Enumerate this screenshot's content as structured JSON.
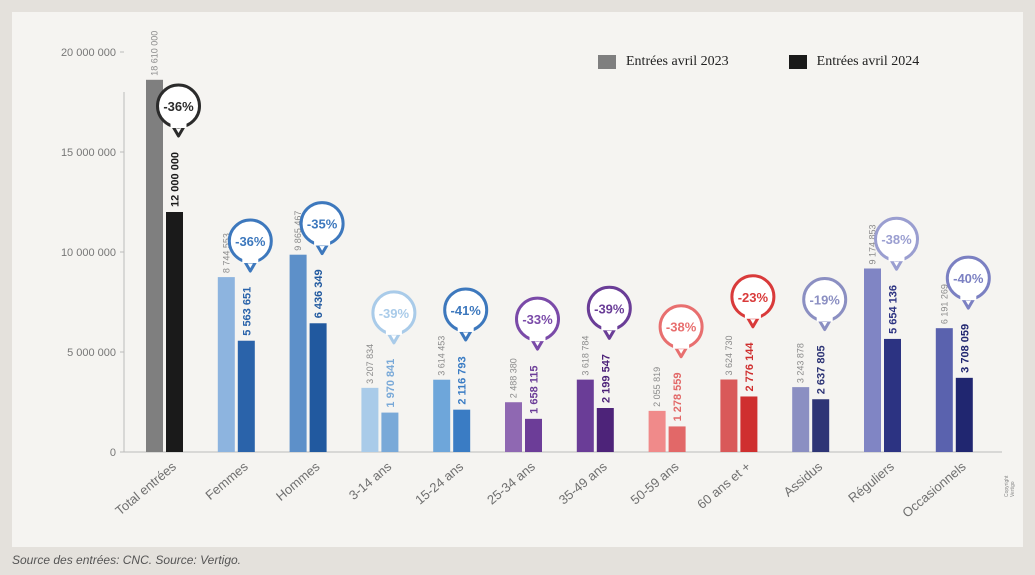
{
  "legend": {
    "items": [
      {
        "label": "Entrées avril 2023",
        "color": "#7f7f7f"
      },
      {
        "label": "Entrées avril 2024",
        "color": "#1a1a1a"
      }
    ]
  },
  "source": "Source des entrées: CNC. Source: Vertigo.",
  "copyright": "Copyright Vertigo",
  "chart_data": {
    "type": "bar",
    "categories": [
      "Total entrées",
      "Femmes",
      "Hommes",
      "3-14 ans",
      "15-24 ans",
      "25-34 ans",
      "35-49 ans",
      "50-59 ans",
      "60 ans et +",
      "Assidus",
      "Réguliers",
      "Occasionnels"
    ],
    "series": [
      {
        "name": "Entrées avril 2023",
        "values": [
          18610000,
          8744553,
          9865467,
          3207834,
          3614453,
          2488380,
          3618784,
          2055819,
          3624730,
          3243878,
          9174853,
          6191269
        ]
      },
      {
        "name": "Entrées avril 2024",
        "values": [
          12000000,
          5563651,
          6436349,
          1970841,
          2116793,
          1658115,
          2199547,
          1278559,
          2776144,
          2637805,
          5654136,
          3708059
        ]
      }
    ],
    "value_labels_2023": [
      "18 610 000",
      "8 744 553",
      "9 865 467",
      "3 207 834",
      "3 614 453",
      "2 488 380",
      "3 618 784",
      "2 055 819",
      "3 624 730",
      "3 243 878",
      "9 174 853",
      "6 191 269"
    ],
    "value_labels_2024": [
      "12 000 000",
      "5 563 651",
      "6 436 349",
      "1 970 841",
      "2 116 793",
      "1 658 115",
      "2 199 547",
      "1 278 559",
      "2 776 144",
      "2 637 805",
      "5 654 136",
      "3 708 059"
    ],
    "changes": [
      "-36%",
      "-36%",
      "-35%",
      "-39%",
      "-41%",
      "-33%",
      "-39%",
      "-38%",
      "-23%",
      "-19%",
      "-38%",
      "-40%"
    ],
    "colors_2023": [
      "#7f7f7f",
      "#8db4df",
      "#5d90c9",
      "#a9cbe9",
      "#6ea6da",
      "#8f68b2",
      "#6a3d97",
      "#f08a8a",
      "#d95959",
      "#8b8fc2",
      "#8085c4",
      "#5a62ae"
    ],
    "colors_2024": [
      "#1a1a1a",
      "#2a63aa",
      "#21599f",
      "#79a9d8",
      "#3a7cc4",
      "#6c3d98",
      "#4d2379",
      "#e26868",
      "#cf2f2f",
      "#2e3576",
      "#2c3382",
      "#202670"
    ],
    "bubble_colors": [
      "#2b2b2b",
      "#3d78bd",
      "#3d78bd",
      "#a9cbe9",
      "#3d78bd",
      "#7a4aa8",
      "#6a3d97",
      "#e86f6f",
      "#d93a3a",
      "#8b8fc2",
      "#9a9ed0",
      "#7b80c2"
    ],
    "yticks": [
      0,
      5000000,
      10000000,
      15000000,
      20000000
    ],
    "ytick_labels": [
      "0",
      "5 000 000",
      "10 000 000",
      "15 000 000",
      "20 000 000"
    ],
    "ylim": [
      0,
      21000000
    ],
    "xlabel": "",
    "ylabel": "",
    "grid": false,
    "legend_position": "top-right"
  }
}
